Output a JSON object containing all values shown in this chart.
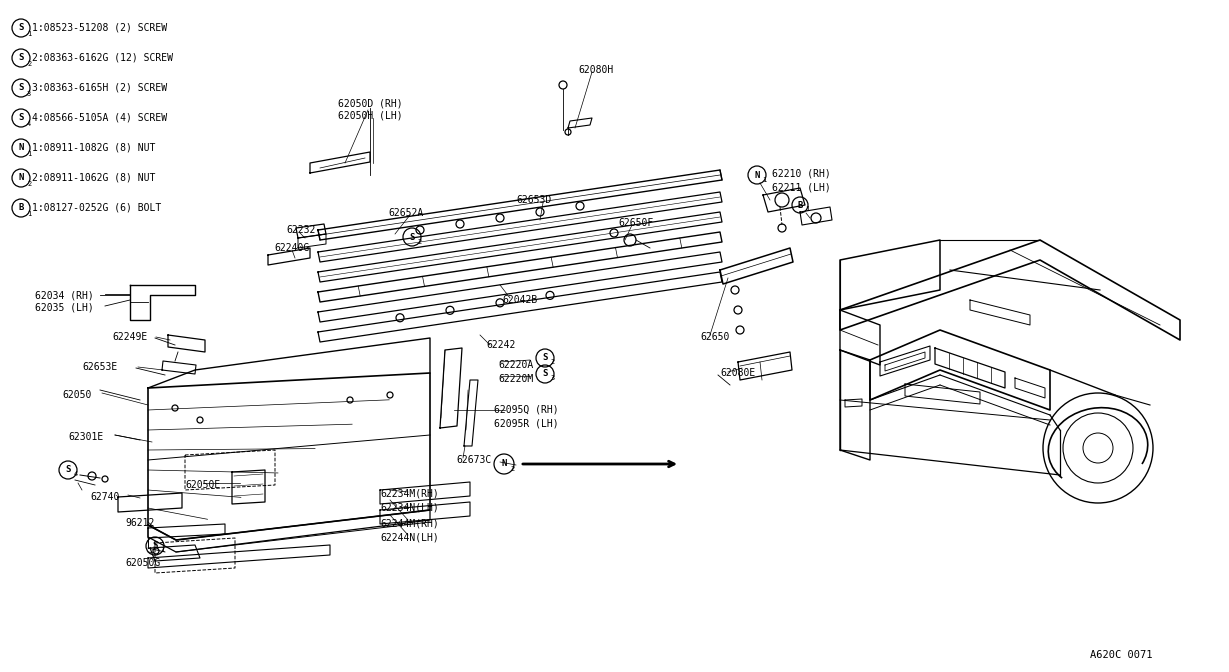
{
  "background_color": "#ffffff",
  "line_color": "#000000",
  "text_color": "#000000",
  "diagram_code": "A620C 0071",
  "legend_items": [
    {
      "symbol": "S",
      "num": "1",
      "part": "08523-51208",
      "qty": "(2)",
      "desc": "SCREW"
    },
    {
      "symbol": "S",
      "num": "2",
      "part": "08363-6162G",
      "qty": "(12)",
      "desc": "SCREW"
    },
    {
      "symbol": "S",
      "num": "3",
      "part": "08363-6165H",
      "qty": "(2)",
      "desc": "SCREW"
    },
    {
      "symbol": "S",
      "num": "4",
      "part": "08566-5105A",
      "qty": "(4)",
      "desc": "SCREW"
    },
    {
      "symbol": "N",
      "num": "1",
      "part": "08911-1082G",
      "qty": "(8)",
      "desc": "NUT"
    },
    {
      "symbol": "N",
      "num": "2",
      "part": "08911-1062G",
      "qty": "(8)",
      "desc": "NUT"
    },
    {
      "symbol": "B",
      "num": "1",
      "part": "08127-0252G",
      "qty": "(6)",
      "desc": "BOLT"
    }
  ]
}
